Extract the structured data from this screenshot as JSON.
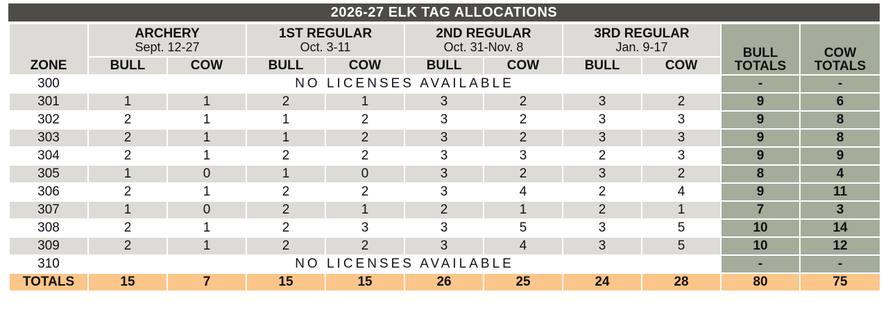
{
  "title": "2026-27 ELK TAG ALLOCATIONS",
  "zone_label": "ZONE",
  "groups": [
    {
      "name": "ARCHERY",
      "dates": "Sept. 12-27"
    },
    {
      "name": "1ST REGULAR",
      "dates": "Oct. 3-11"
    },
    {
      "name": "2ND REGULAR",
      "dates": "Oct. 31-Nov. 8"
    },
    {
      "name": "3RD REGULAR",
      "dates": "Jan. 9-17"
    }
  ],
  "sub_labels": {
    "bull": "BULL",
    "cow": "COW"
  },
  "totals_headers": {
    "bull": [
      "BULL",
      "TOTALS"
    ],
    "cow": [
      "COW",
      "TOTALS"
    ]
  },
  "rows": [
    {
      "zone": "300",
      "note": "NO LICENSES AVAILABLE",
      "bull_total": "-",
      "cow_total": "-"
    },
    {
      "zone": "301",
      "values": [
        "1",
        "1",
        "2",
        "1",
        "3",
        "2",
        "3",
        "2"
      ],
      "bull_total": "9",
      "cow_total": "6"
    },
    {
      "zone": "302",
      "values": [
        "2",
        "1",
        "1",
        "2",
        "3",
        "2",
        "3",
        "3"
      ],
      "bull_total": "9",
      "cow_total": "8"
    },
    {
      "zone": "303",
      "values": [
        "2",
        "1",
        "1",
        "2",
        "3",
        "2",
        "3",
        "3"
      ],
      "bull_total": "9",
      "cow_total": "8"
    },
    {
      "zone": "304",
      "values": [
        "2",
        "1",
        "2",
        "2",
        "3",
        "3",
        "2",
        "3"
      ],
      "bull_total": "9",
      "cow_total": "9"
    },
    {
      "zone": "305",
      "values": [
        "1",
        "0",
        "1",
        "0",
        "3",
        "2",
        "3",
        "2"
      ],
      "bull_total": "8",
      "cow_total": "4"
    },
    {
      "zone": "306",
      "values": [
        "2",
        "1",
        "2",
        "2",
        "3",
        "4",
        "2",
        "4"
      ],
      "bull_total": "9",
      "cow_total": "11"
    },
    {
      "zone": "307",
      "values": [
        "1",
        "0",
        "2",
        "1",
        "2",
        "1",
        "2",
        "1"
      ],
      "bull_total": "7",
      "cow_total": "3"
    },
    {
      "zone": "308",
      "values": [
        "2",
        "1",
        "2",
        "3",
        "3",
        "5",
        "3",
        "5"
      ],
      "bull_total": "10",
      "cow_total": "14"
    },
    {
      "zone": "309",
      "values": [
        "2",
        "1",
        "2",
        "2",
        "3",
        "4",
        "3",
        "5"
      ],
      "bull_total": "10",
      "cow_total": "12"
    },
    {
      "zone": "310",
      "note": "NO LICENSES AVAILABLE",
      "bull_total": "-",
      "cow_total": "-"
    }
  ],
  "totals_row": {
    "label": "TOTALS",
    "values": [
      "15",
      "7",
      "15",
      "15",
      "26",
      "25",
      "24",
      "28"
    ],
    "bull_total": "80",
    "cow_total": "75"
  },
  "colors": {
    "title_bg": "#4d4c46",
    "header_bg": "#dddbd5",
    "stripe_bg": "#dddbd5",
    "totals_col_bg": "#a3ad9a",
    "totals_row_bg": "#fcc58a"
  }
}
